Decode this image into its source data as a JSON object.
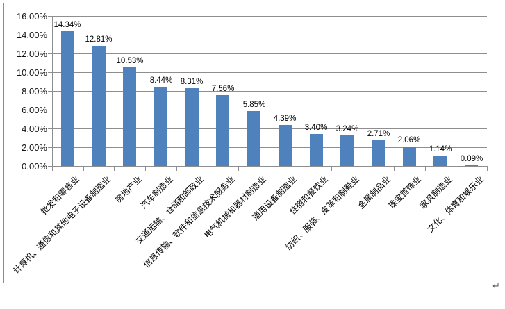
{
  "document": {
    "paragraph_mark": "↵"
  },
  "chart_data": {
    "type": "bar",
    "title": "",
    "xlabel": "",
    "ylabel": "",
    "categories": [
      "批发和零售业",
      "计算机、通信和其他电子设备制造业",
      "房地产业",
      "汽车制造业",
      "交通运输、仓储和邮政业",
      "信息传输、软件和信息技术服务业",
      "电气机械和器材制造业",
      "通用设备制造业",
      "住宿和餐饮业",
      "纺织、服装、皮革和制鞋业",
      "金属制品业",
      "珠宝首饰业",
      "家具制造业",
      "文化、体育和娱乐业"
    ],
    "values": [
      14.34,
      12.81,
      10.53,
      8.44,
      8.31,
      7.56,
      5.85,
      4.39,
      3.4,
      3.24,
      2.71,
      2.06,
      1.14,
      0.09
    ],
    "value_labels": [
      "14.34%",
      "12.81%",
      "10.53%",
      "8.44%",
      "8.31%",
      "7.56%",
      "5.85%",
      "4.39%",
      "3.40%",
      "3.24%",
      "2.71%",
      "2.06%",
      "1.14%",
      "0.09%"
    ],
    "y_axis": {
      "min": 0,
      "max": 16,
      "step": 2,
      "tick_labels": [
        "16.00%",
        "14.00%",
        "12.00%",
        "10.00%",
        "8.00%",
        "6.00%",
        "4.00%",
        "2.00%",
        "0.00%"
      ]
    },
    "grid": true,
    "legend": false,
    "colors": {
      "bar": "#4f81bd",
      "grid": "#8e8e8e",
      "axis": "#8e8e8e",
      "border": "#8b8b8b",
      "text": "#000000"
    }
  }
}
